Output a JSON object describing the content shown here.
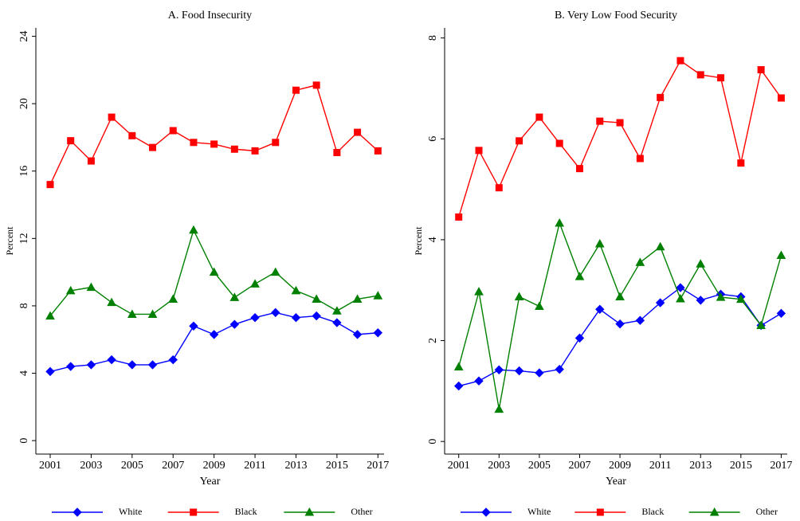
{
  "chart_data": [
    {
      "type": "line",
      "title": "A. Food Insecurity",
      "x_label": "Year",
      "y_label": "Percent",
      "x": [
        2001,
        2002,
        2003,
        2004,
        2005,
        2006,
        2007,
        2008,
        2009,
        2010,
        2011,
        2012,
        2013,
        2014,
        2015,
        2016,
        2017
      ],
      "xlim": [
        2000.3,
        2017.3
      ],
      "xticks": [
        2001,
        2003,
        2005,
        2007,
        2009,
        2011,
        2013,
        2015,
        2017
      ],
      "ylim": [
        -0.8,
        24.5
      ],
      "yticks": [
        0,
        4,
        8,
        12,
        16,
        20,
        24
      ],
      "legend": "bottom",
      "series": [
        {
          "name": "White",
          "color": "#0000ff",
          "marker": "diamond",
          "values": [
            4.1,
            4.4,
            4.5,
            4.8,
            4.5,
            4.5,
            4.8,
            6.8,
            6.3,
            6.9,
            7.3,
            7.6,
            7.3,
            7.4,
            7.0,
            6.3,
            6.4
          ]
        },
        {
          "name": "Black",
          "color": "#ff0000",
          "marker": "square",
          "values": [
            15.2,
            17.8,
            16.6,
            19.2,
            18.1,
            17.4,
            18.4,
            17.7,
            17.6,
            17.3,
            17.2,
            17.7,
            20.8,
            21.1,
            17.1,
            18.3,
            17.2
          ]
        },
        {
          "name": "Other",
          "color": "#008000",
          "marker": "triangle",
          "values": [
            7.4,
            8.9,
            9.1,
            8.2,
            7.5,
            7.5,
            8.4,
            12.5,
            10.0,
            8.5,
            9.3,
            10.0,
            8.9,
            8.4,
            7.7,
            8.4,
            8.6
          ]
        }
      ]
    },
    {
      "type": "line",
      "title": "B. Very Low Food Security",
      "x_label": "Year",
      "y_label": "Percent",
      "x": [
        2001,
        2002,
        2003,
        2004,
        2005,
        2006,
        2007,
        2008,
        2009,
        2010,
        2011,
        2012,
        2013,
        2014,
        2015,
        2016,
        2017
      ],
      "xlim": [
        2000.3,
        2017.3
      ],
      "xticks": [
        2001,
        2003,
        2005,
        2007,
        2009,
        2011,
        2013,
        2015,
        2017
      ],
      "ylim": [
        -0.25,
        8.2
      ],
      "yticks": [
        0,
        2,
        4,
        6,
        8
      ],
      "legend": "bottom",
      "series": [
        {
          "name": "White",
          "color": "#0000ff",
          "marker": "diamond",
          "values": [
            1.1,
            1.2,
            1.42,
            1.4,
            1.36,
            1.43,
            2.05,
            2.62,
            2.33,
            2.4,
            2.75,
            3.05,
            2.8,
            2.92,
            2.87,
            2.3,
            2.54
          ]
        },
        {
          "name": "Black",
          "color": "#ff0000",
          "marker": "square",
          "values": [
            4.45,
            5.77,
            5.03,
            5.96,
            6.43,
            5.91,
            5.41,
            6.35,
            6.32,
            5.61,
            6.82,
            7.55,
            7.27,
            7.21,
            5.52,
            7.37,
            6.81
          ]
        },
        {
          "name": "Other",
          "color": "#008000",
          "marker": "triangle",
          "values": [
            1.48,
            2.97,
            0.64,
            2.87,
            2.68,
            4.33,
            3.27,
            3.92,
            2.87,
            3.55,
            3.86,
            2.83,
            3.52,
            2.86,
            2.82,
            2.3,
            3.69
          ]
        }
      ]
    }
  ]
}
